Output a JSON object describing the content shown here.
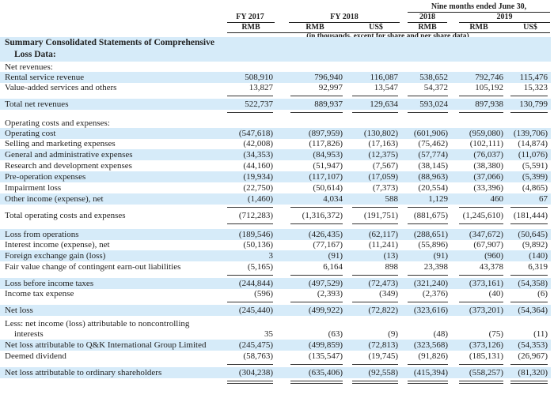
{
  "header": {
    "nine_months": "Nine months ended June 30,",
    "fy2017": "FY 2017",
    "fy2018": "FY 2018",
    "y2018": "2018",
    "y2019": "2019",
    "currencies": [
      "RMB",
      "RMB",
      "US$",
      "RMB",
      "RMB",
      "US$"
    ],
    "units_note": "(in thousands, except for share and per share data)"
  },
  "title_line1": "Summary Consolidated Statements of Comprehensive",
  "title_line2": "Loss Data:",
  "rows": [
    {
      "label": "Net revenues:",
      "values": []
    },
    {
      "label": "Rental service revenue",
      "values": [
        "508,910",
        "796,940",
        "116,087",
        "538,652",
        "792,746",
        "115,476"
      ]
    },
    {
      "label": "Value-added services and others",
      "values": [
        "13,827",
        "92,997",
        "13,547",
        "54,372",
        "105,192",
        "15,323"
      ]
    },
    {
      "label": "Total net revenues",
      "values": [
        "522,737",
        "889,937",
        "129,634",
        "593,024",
        "897,938",
        "130,799"
      ]
    },
    {
      "label": "Operating costs and expenses:",
      "values": []
    },
    {
      "label": "Operating cost",
      "values": [
        "(547,618)",
        "(897,959)",
        "(130,802)",
        "(601,906)",
        "(959,080)",
        "(139,706)"
      ]
    },
    {
      "label": "Selling and marketing expenses",
      "values": [
        "(42,008)",
        "(117,826)",
        "(17,163)",
        "(75,462)",
        "(102,111)",
        "(14,874)"
      ]
    },
    {
      "label": "General and administrative expenses",
      "values": [
        "(34,353)",
        "(84,953)",
        "(12,375)",
        "(57,774)",
        "(76,037)",
        "(11,076)"
      ]
    },
    {
      "label": "Research and development expenses",
      "values": [
        "(44,160)",
        "(51,947)",
        "(7,567)",
        "(38,145)",
        "(38,380)",
        "(5,591)"
      ]
    },
    {
      "label": "Pre-operation expenses",
      "values": [
        "(19,934)",
        "(117,107)",
        "(17,059)",
        "(88,963)",
        "(37,066)",
        "(5,399)"
      ]
    },
    {
      "label": "Impairment loss",
      "values": [
        "(22,750)",
        "(50,614)",
        "(7,373)",
        "(20,554)",
        "(33,396)",
        "(4,865)"
      ]
    },
    {
      "label": "Other income (expense), net",
      "values": [
        "(1,460)",
        "4,034",
        "588",
        "1,129",
        "460",
        "67"
      ]
    },
    {
      "label": "Total operating costs and expenses",
      "values": [
        "(712,283)",
        "(1,316,372)",
        "(191,751)",
        "(881,675)",
        "(1,245,610)",
        "(181,444)"
      ]
    },
    {
      "label": "Loss from operations",
      "values": [
        "(189,546)",
        "(426,435)",
        "(62,117)",
        "(288,651)",
        "(347,672)",
        "(50,645)"
      ]
    },
    {
      "label": "Interest income (expense), net",
      "values": [
        "(50,136)",
        "(77,167)",
        "(11,241)",
        "(55,896)",
        "(67,907)",
        "(9,892)"
      ]
    },
    {
      "label": "Foreign exchange gain (loss)",
      "values": [
        "3",
        "(91)",
        "(13)",
        "(91)",
        "(960)",
        "(140)"
      ]
    },
    {
      "label": "Fair value change of contingent earn-out liabilities",
      "values": [
        "(5,165)",
        "6,164",
        "898",
        "23,398",
        "43,378",
        "6,319"
      ]
    },
    {
      "label": "Loss before income taxes",
      "values": [
        "(244,844)",
        "(497,529)",
        "(72,473)",
        "(321,240)",
        "(373,161)",
        "(54,358)"
      ]
    },
    {
      "label": "Income tax expense",
      "values": [
        "(596)",
        "(2,393)",
        "(349)",
        "(2,376)",
        "(40)",
        "(6)"
      ]
    },
    {
      "label": "Net loss",
      "values": [
        "(245,440)",
        "(499,922)",
        "(72,822)",
        "(323,616)",
        "(373,201)",
        "(54,364)"
      ]
    },
    {
      "label": "Less: net income (loss) attributable to noncontrolling",
      "values": []
    },
    {
      "label": "interests",
      "values": [
        "35",
        "(63)",
        "(9)",
        "(48)",
        "(75)",
        "(11)"
      ]
    },
    {
      "label": "Net loss attributable to Q&K International Group Limited",
      "values": [
        "(245,475)",
        "(499,859)",
        "(72,813)",
        "(323,568)",
        "(373,126)",
        "(54,353)"
      ]
    },
    {
      "label": "Deemed dividend",
      "values": [
        "(58,763)",
        "(135,547)",
        "(19,745)",
        "(91,826)",
        "(185,131)",
        "(26,967)"
      ]
    },
    {
      "label": "Net loss attributable to ordinary shareholders",
      "values": [
        "(304,238)",
        "(635,406)",
        "(92,558)",
        "(415,394)",
        "(558,257)",
        "(81,320)"
      ]
    }
  ]
}
